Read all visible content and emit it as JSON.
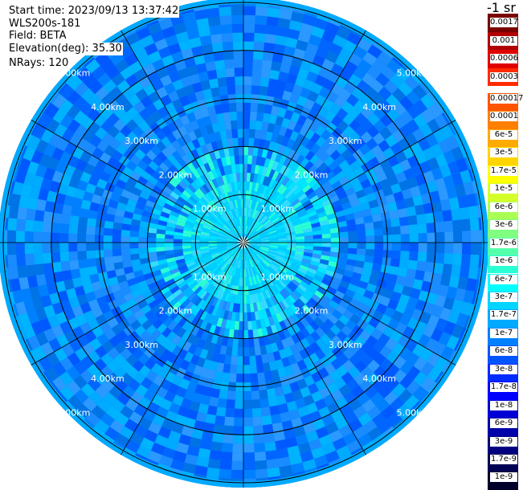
{
  "header": {
    "start_time": "Start time: 2023/09/13 13:37:42",
    "instrument": "WLS200s-181",
    "field": "Field: BETA",
    "elevation": "Elevation(deg): 35.30",
    "nrays": "NRays: 120"
  },
  "colorbar": {
    "units": "-1 sr",
    "upper_labels": [
      "0.0017",
      "0.001",
      "0.0006",
      "0.0003"
    ],
    "lower_labels": [
      "0.00017",
      "0.0001",
      "6e-5",
      "3e-5",
      "1.7e-5",
      "1e-5",
      "6e-6",
      "3e-6",
      "1.7e-6",
      "1e-6",
      "6e-7",
      "3e-7",
      "1.7e-7",
      "1e-7",
      "6e-8",
      "3e-8",
      "1.7e-8",
      "1e-8",
      "6e-9",
      "3e-9",
      "1.7e-9",
      "1e-9"
    ],
    "upper_colors": [
      "#7a0000",
      "#b00000",
      "#e00000",
      "#ff2a00"
    ],
    "lower_colors": [
      "#ff5500",
      "#ff8000",
      "#ffaa00",
      "#ffd400",
      "#ffff00",
      "#d4ff2b",
      "#aaff55",
      "#80ff80",
      "#55ffaa",
      "#2bffd4",
      "#00ffff",
      "#00d4ff",
      "#00aaff",
      "#0080ff",
      "#0055ff",
      "#002bff",
      "#0000ff",
      "#0000d4",
      "#0000aa",
      "#000080",
      "#000055",
      "#00002b"
    ]
  },
  "chart_data": {
    "type": "heatmap",
    "projection": "polar-ppi",
    "field": "BETA",
    "nrays": 120,
    "range_rings_km": [
      1,
      2,
      3,
      4,
      5
    ],
    "ring_labels": [
      "1.00km",
      "2.00km",
      "3.00km",
      "4.00km",
      "5.00km"
    ],
    "max_range_km": 5.1,
    "azimuth_spokes_deg": [
      0,
      30,
      60,
      90,
      120,
      150,
      180,
      210,
      240,
      270,
      300,
      330
    ],
    "value_scale": "log",
    "value_range": [
      1e-09,
      0.0017
    ],
    "dominant_color": "#0080ff",
    "near_field_color": "#00d4ff"
  }
}
